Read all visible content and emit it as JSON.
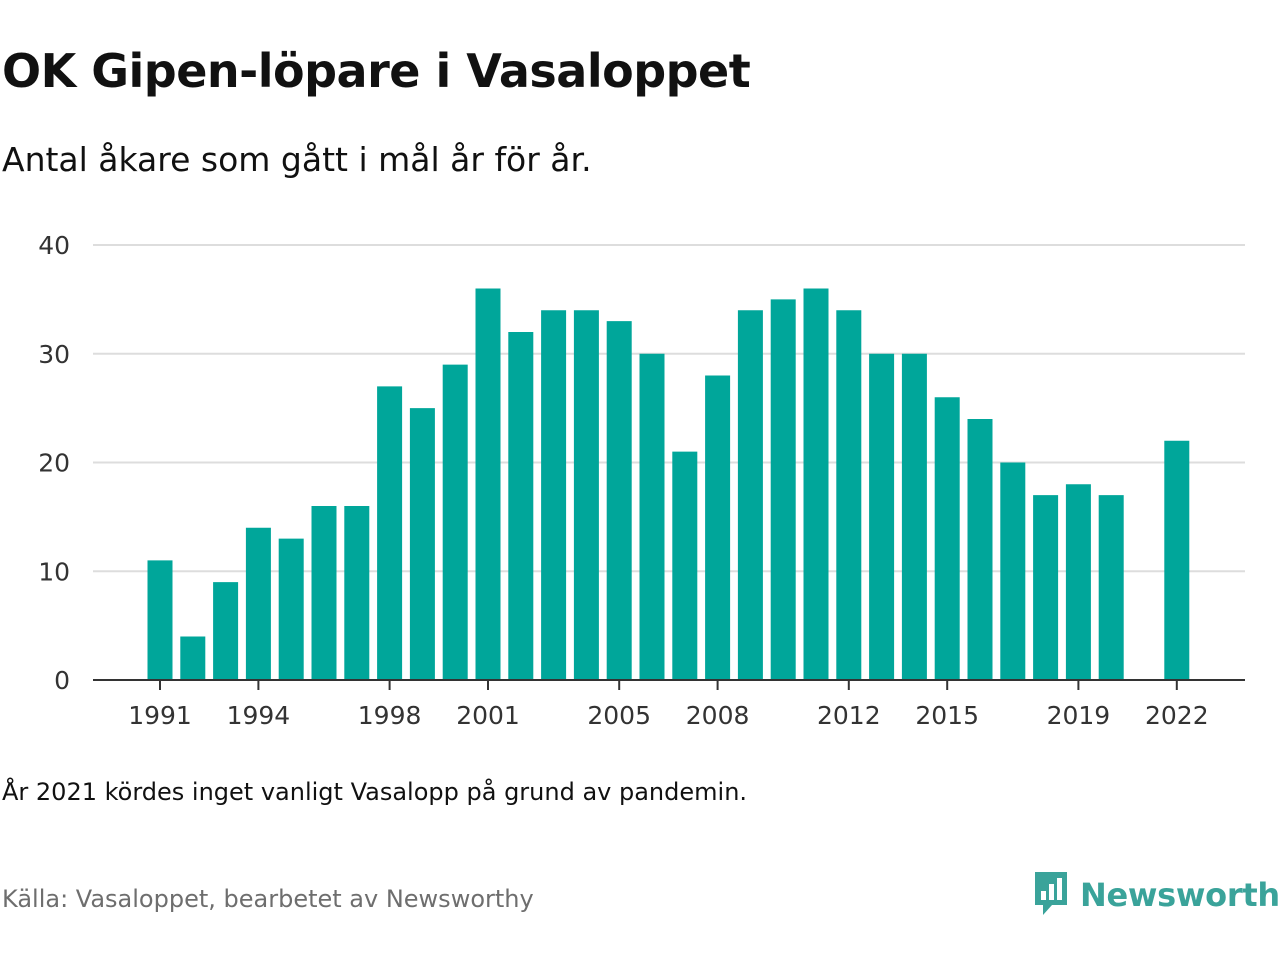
{
  "header": {
    "title": "OK Gipen-löpare i Vasaloppet",
    "subtitle": "Antal åkare som gått i mål år för år."
  },
  "footer": {
    "note": "År 2021 kördes inget vanligt Vasalopp på grund av pandemin.",
    "source": "Källa: Vasaloppet, bearbetet av Newsworthy",
    "brand": "Newsworthy"
  },
  "colors": {
    "bar": "#00a69a",
    "grid": "#dddddd",
    "axis": "#333333",
    "brand": "#3aa39a"
  },
  "icons": {
    "brand_logo": "newsworthy-logo-icon"
  },
  "chart_data": {
    "type": "bar",
    "title": "OK Gipen-löpare i Vasaloppet",
    "subtitle": "Antal åkare som gått i mål år för år.",
    "xlabel": "",
    "ylabel": "",
    "ylim": [
      0,
      40
    ],
    "yticks": [
      0,
      10,
      20,
      30,
      40
    ],
    "grid": true,
    "categories": [
      1991,
      1992,
      1993,
      1994,
      1995,
      1996,
      1997,
      1998,
      1999,
      2000,
      2001,
      2002,
      2003,
      2004,
      2005,
      2006,
      2007,
      2008,
      2009,
      2010,
      2011,
      2012,
      2013,
      2014,
      2015,
      2016,
      2017,
      2018,
      2019,
      2020,
      2021,
      2022
    ],
    "values": [
      11,
      4,
      9,
      14,
      13,
      16,
      16,
      27,
      25,
      29,
      36,
      32,
      34,
      34,
      33,
      30,
      21,
      28,
      34,
      35,
      36,
      34,
      30,
      30,
      26,
      24,
      20,
      17,
      18,
      17,
      null,
      22
    ],
    "xtick_labels": [
      "1991",
      "1994",
      "1998",
      "2001",
      "2005",
      "2008",
      "2012",
      "2015",
      "2019",
      "2022"
    ]
  }
}
